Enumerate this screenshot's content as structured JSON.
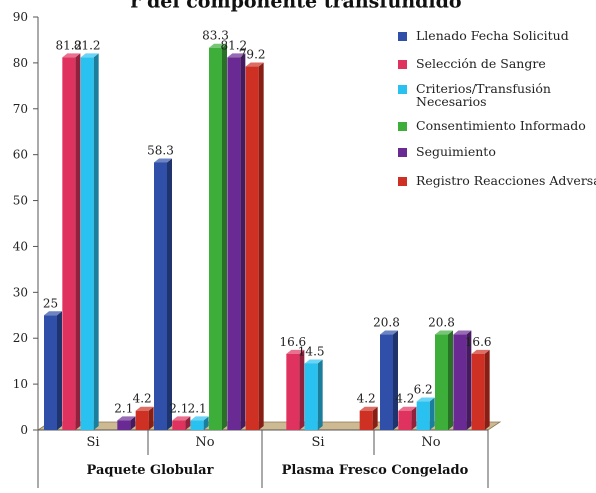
{
  "chart_data": {
    "type": "bar",
    "title": "r del componente transfundido",
    "groups": [
      "Paquete Globular",
      "Plasma Fresco Congelado"
    ],
    "categories": [
      "Si",
      "No",
      "Si",
      "No"
    ],
    "ylim": [
      0,
      90
    ],
    "yticks": [
      0,
      10,
      20,
      30,
      40,
      50,
      60,
      70,
      80,
      90
    ],
    "legend_position": "right",
    "series": [
      {
        "name": "Llenado Fecha Solicitud",
        "color": "#2f4fa8",
        "values": [
          25,
          58.3,
          0,
          20.8
        ]
      },
      {
        "name": "Selección de Sangre",
        "color": "#e0325f",
        "values": [
          81.2,
          2.1,
          16.6,
          4.2
        ]
      },
      {
        "name": "Criterios/Transfusión Necesarios",
        "color": "#29c2f0",
        "values": [
          81.2,
          2.1,
          14.5,
          6.2
        ]
      },
      {
        "name": "Consentimiento Informado",
        "color": "#3dae3a",
        "values": [
          0,
          83.3,
          0,
          20.8
        ]
      },
      {
        "name": "Seguimiento",
        "color": "#6a2a94",
        "values": [
          2.1,
          81.2,
          0,
          20.8
        ]
      },
      {
        "name": "Registro Reacciones Adversas",
        "color": "#cf3024",
        "values": [
          4.2,
          79.2,
          4.2,
          16.6
        ]
      }
    ],
    "data_labels": [
      [
        "25",
        "58.3",
        "",
        "20.8"
      ],
      [
        "81.2",
        "2.1",
        "16.6",
        "4.2"
      ],
      [
        "81.2",
        "2.1",
        "14.5",
        "6.2"
      ],
      [
        "",
        "83.3",
        "",
        "20.8"
      ],
      [
        "2.1",
        "81.2",
        "",
        ""
      ],
      [
        "4.2",
        "79.2",
        "4.2",
        "16.6"
      ]
    ]
  }
}
